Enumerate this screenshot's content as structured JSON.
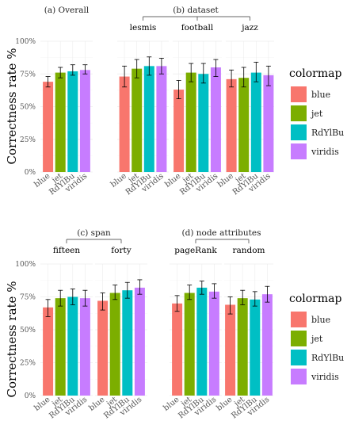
{
  "chart_data": {
    "type": "bar",
    "ylabel": "Correctness rate %",
    "yticks": [
      "0%",
      "25%",
      "50%",
      "75%",
      "100%"
    ],
    "ylim": [
      0,
      100
    ],
    "categories": [
      "blue",
      "jet",
      "RdYlBu",
      "viridis"
    ],
    "legend": {
      "title": "colormap",
      "placement": "right",
      "entries": [
        "blue",
        "jet",
        "RdYlBu",
        "viridis"
      ]
    },
    "colors": {
      "blue": "#F8766D",
      "jet": "#7CAE00",
      "RdYlBu": "#00BFC4",
      "viridis": "#C77CFF"
    },
    "top_row": {
      "panels": [
        {
          "label": "(a) Overall",
          "facets": [
            {
              "name": "",
              "values": [
                69,
                76,
                77,
                78
              ],
              "errors": [
                [
                  65,
                  73
                ],
                [
                  72,
                  80
                ],
                [
                  74,
                  82
                ],
                [
                  75,
                  82
                ]
              ]
            }
          ]
        },
        {
          "label": "(b) dataset",
          "facets": [
            {
              "name": "lesmis",
              "values": [
                73,
                79,
                81,
                81
              ],
              "errors": [
                [
                  65,
                  81
                ],
                [
                  72,
                  86
                ],
                [
                  74,
                  88
                ],
                [
                  75,
                  87
                ]
              ]
            },
            {
              "name": "football",
              "values": [
                63,
                76,
                75,
                80
              ],
              "errors": [
                [
                  56,
                  70
                ],
                [
                  69,
                  83
                ],
                [
                  68,
                  83
                ],
                [
                  73,
                  86
                ]
              ]
            },
            {
              "name": "jazz",
              "values": [
                71,
                72,
                76,
                74
              ],
              "errors": [
                [
                  65,
                  78
                ],
                [
                  65,
                  80
                ],
                [
                  69,
                  84
                ],
                [
                  66,
                  81
                ]
              ]
            }
          ]
        }
      ]
    },
    "bottom_row": {
      "panels": [
        {
          "label": "(c) span",
          "facets": [
            {
              "name": "fifteen",
              "values": [
                67,
                74,
                75,
                74
              ],
              "errors": [
                [
                  60,
                  73
                ],
                [
                  68,
                  80
                ],
                [
                  69,
                  81
                ],
                [
                  68,
                  80
                ]
              ]
            },
            {
              "name": "forty",
              "values": [
                72,
                78,
                80,
                82
              ],
              "errors": [
                [
                  65,
                  78
                ],
                [
                  73,
                  84
                ],
                [
                  74,
                  86
                ],
                [
                  77,
                  88
                ]
              ]
            }
          ]
        },
        {
          "label": "(d) node attributes",
          "facets": [
            {
              "name": "pageRank",
              "values": [
                70,
                78,
                82,
                79
              ],
              "errors": [
                [
                  64,
                  76
                ],
                [
                  73,
                  84
                ],
                [
                  77,
                  87
                ],
                [
                  74,
                  85
                ]
              ]
            },
            {
              "name": "random",
              "values": [
                69,
                74,
                73,
                77
              ],
              "errors": [
                [
                  62,
                  75
                ],
                [
                  69,
                  80
                ],
                [
                  68,
                  79
                ],
                [
                  71,
                  83
                ]
              ]
            }
          ]
        }
      ]
    }
  }
}
